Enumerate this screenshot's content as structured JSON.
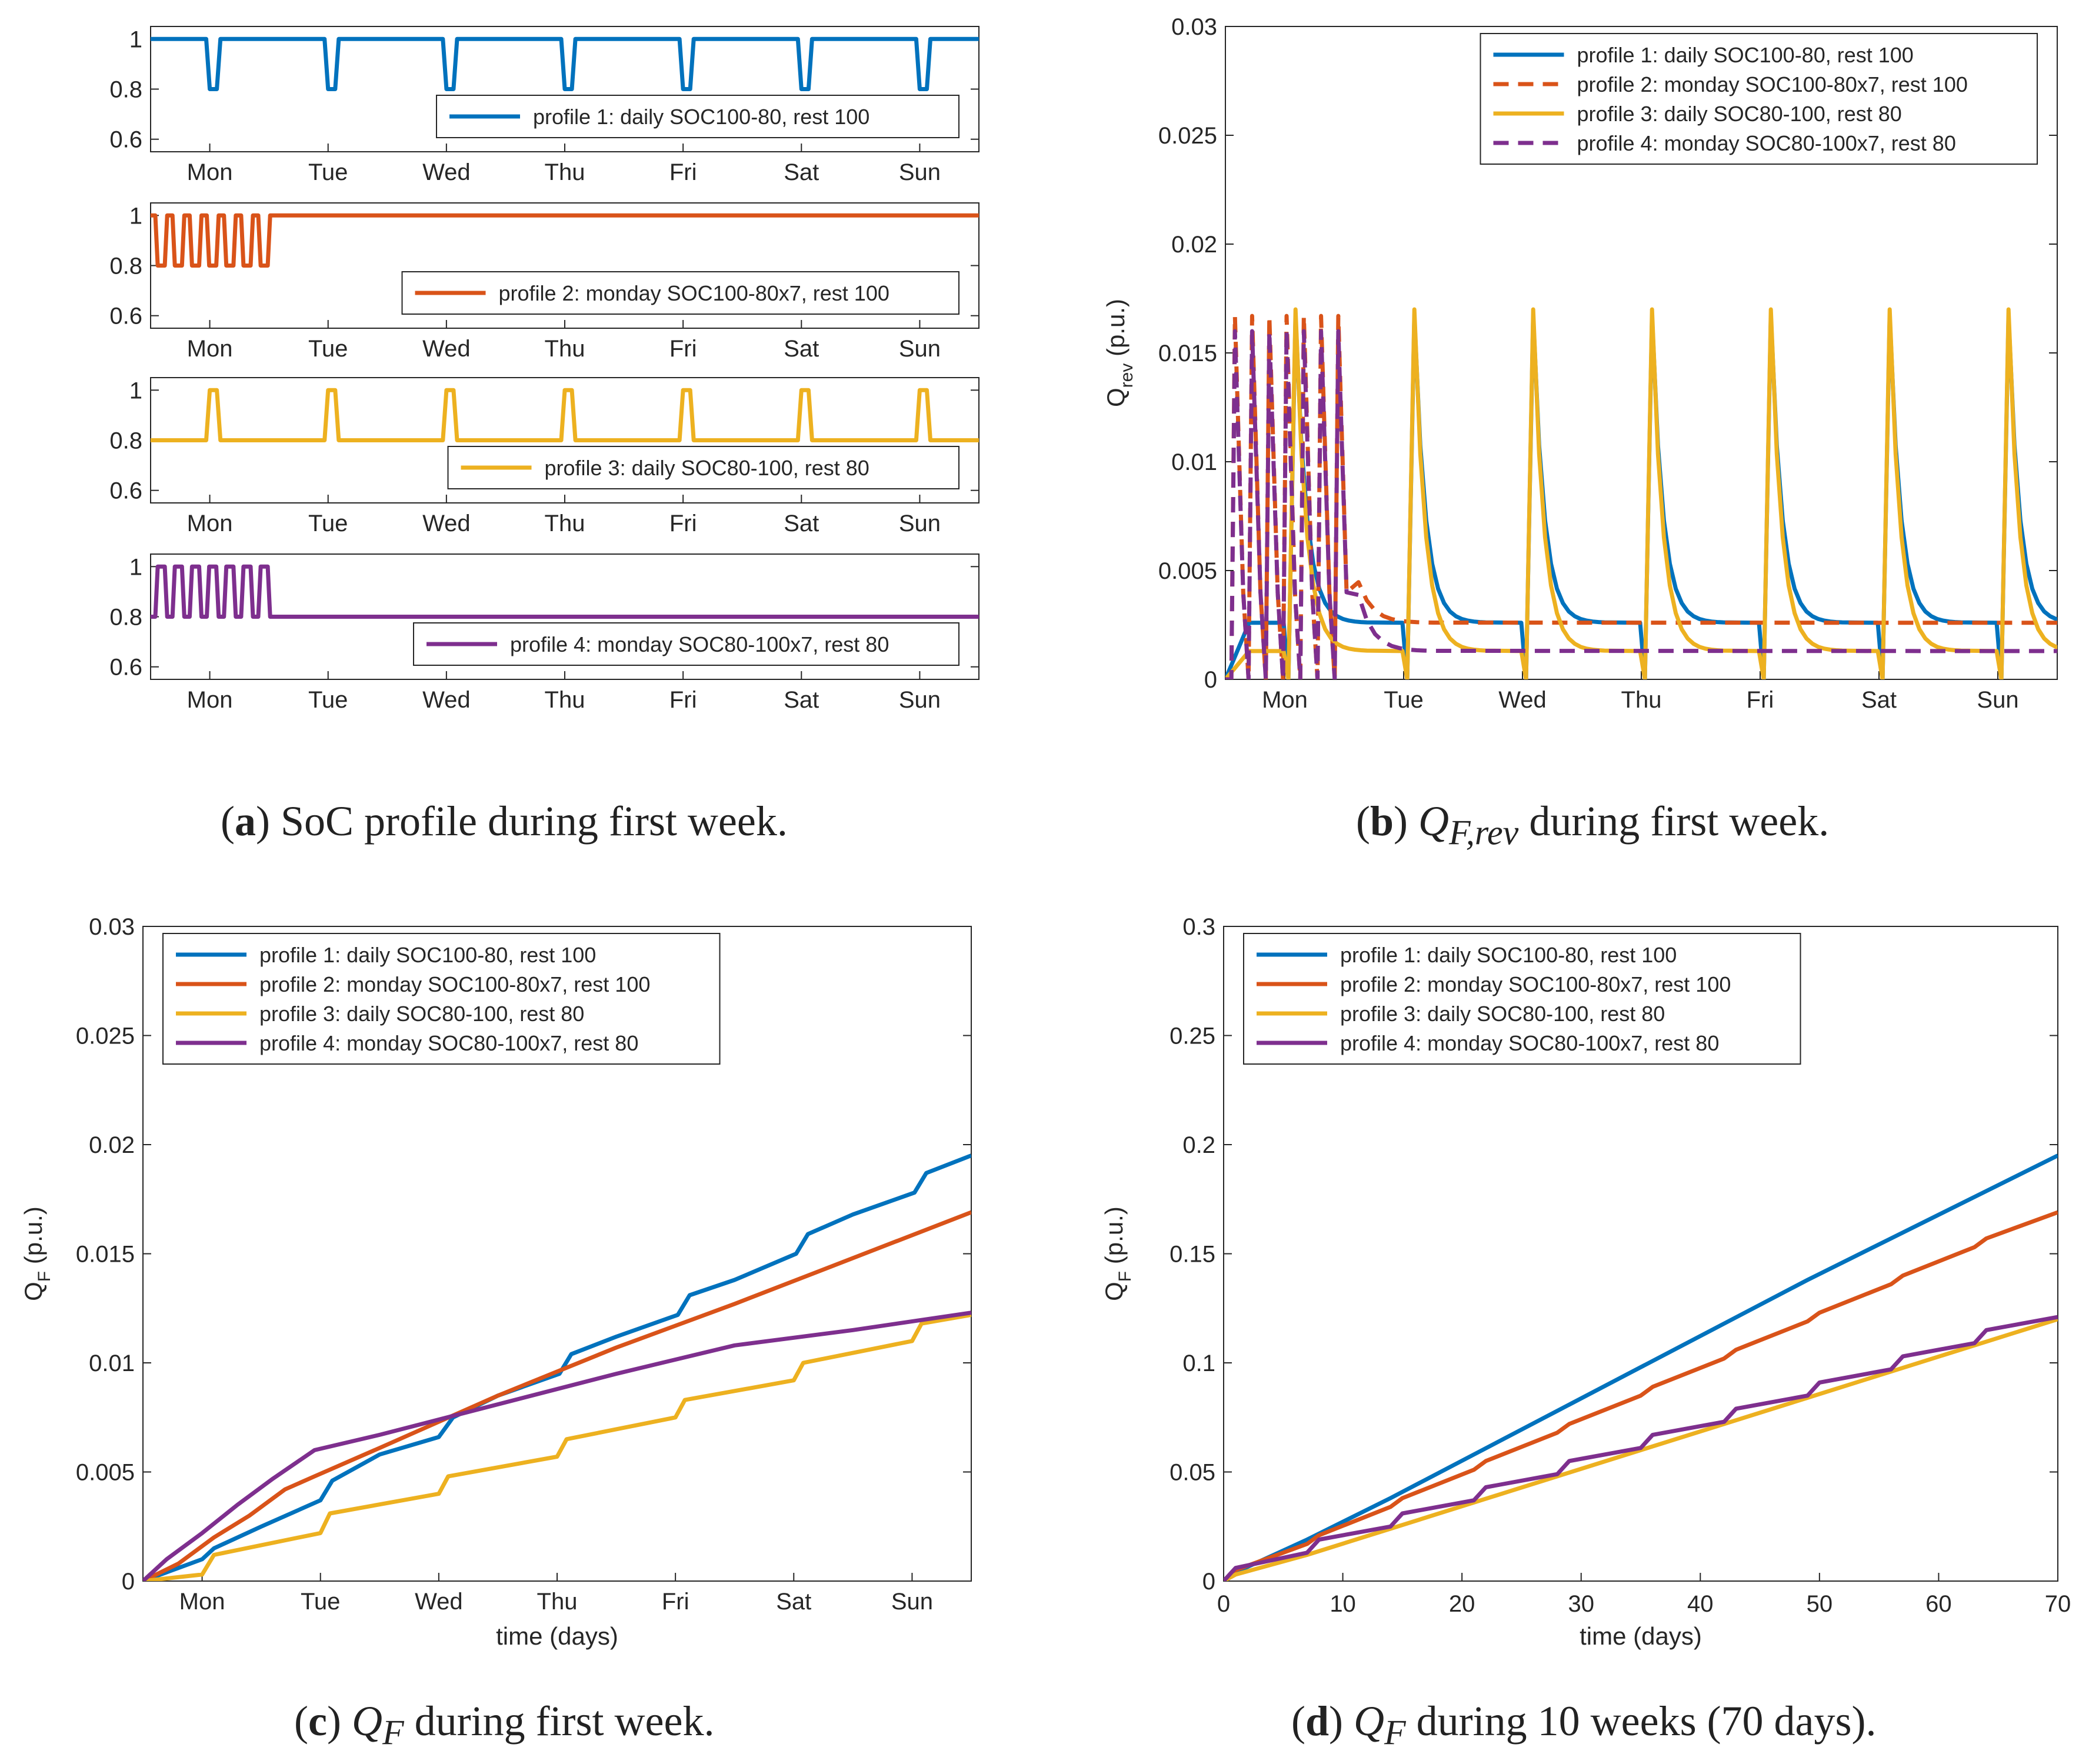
{
  "colors": {
    "p1": "#0072BD",
    "p2": "#D95319",
    "p3": "#EDB120",
    "p4": "#7E2F8E",
    "axis": "#262626"
  },
  "weekdays": [
    "Mon",
    "Tue",
    "Wed",
    "Thu",
    "Fri",
    "Sat",
    "Sun"
  ],
  "captions": {
    "a": {
      "tag": "a",
      "text": "SoC profile during first week."
    },
    "b": {
      "tag": "b",
      "sym": "Q",
      "sub": "F,rev",
      "text": "during first week."
    },
    "c": {
      "tag": "c",
      "sym": "Q",
      "sub": "F",
      "text": "during first week."
    },
    "d": {
      "tag": "d",
      "sym": "Q",
      "sub": "F",
      "text": "during 10 weeks (70 days)."
    }
  },
  "chart_data": [
    {
      "id": "a1",
      "type": "line",
      "ylim": [
        0.55,
        1.05
      ],
      "yticks": [
        "1",
        "0.8",
        "0.6"
      ],
      "ytick_values": [
        1,
        0.8,
        0.6
      ],
      "xlim": [
        0,
        7
      ],
      "series": [
        {
          "name": "profile 1: daily SOC100-80, rest 100",
          "color": "p1",
          "style": "solid",
          "pattern": "daily_dip"
        }
      ],
      "legend": "bottom-right"
    },
    {
      "id": "a2",
      "type": "line",
      "ylim": [
        0.55,
        1.05
      ],
      "yticks": [
        "1",
        "0.8",
        "0.6"
      ],
      "ytick_values": [
        1,
        0.8,
        0.6
      ],
      "xlim": [
        0,
        7
      ],
      "series": [
        {
          "name": "profile 2: monday SOC100-80x7, rest 100",
          "color": "p2",
          "style": "solid",
          "pattern": "monday_x7_dip"
        }
      ],
      "legend": "bottom-right"
    },
    {
      "id": "a3",
      "type": "line",
      "ylim": [
        0.55,
        1.05
      ],
      "yticks": [
        "1",
        "0.8",
        "0.6"
      ],
      "ytick_values": [
        1,
        0.8,
        0.6
      ],
      "xlim": [
        0,
        7
      ],
      "series": [
        {
          "name": "profile 3: daily SOC80-100, rest 80",
          "color": "p3",
          "style": "solid",
          "pattern": "daily_peak"
        }
      ],
      "legend": "bottom-right"
    },
    {
      "id": "a4",
      "type": "line",
      "ylim": [
        0.55,
        1.05
      ],
      "yticks": [
        "1",
        "0.8",
        "0.6"
      ],
      "ytick_values": [
        1,
        0.8,
        0.6
      ],
      "xlim": [
        0,
        7
      ],
      "series": [
        {
          "name": "profile 4: monday SOC80-100x7, rest 80",
          "color": "p4",
          "style": "solid",
          "pattern": "monday_x7_peak"
        }
      ],
      "legend": "bottom-right"
    },
    {
      "id": "b",
      "type": "line",
      "ylabel": "Q_rev (p.u.)",
      "ylim": [
        0,
        0.03
      ],
      "xlim": [
        0,
        7
      ],
      "yticks": [
        "0",
        "0.005",
        "0.01",
        "0.015",
        "0.02",
        "0.025",
        "0.03"
      ],
      "ytick_values": [
        0,
        0.005,
        0.01,
        0.015,
        0.02,
        0.025,
        0.03
      ],
      "series": [
        {
          "name": "profile 1: daily SOC100-80, rest 100",
          "color": "p1",
          "style": "solid",
          "baseline": 0.0026,
          "peak": 0.0167
        },
        {
          "name": "profile 2: monday SOC100-80x7, rest 100",
          "color": "p2",
          "style": "dashed",
          "baseline": 0.0026,
          "peak": 0.0167
        },
        {
          "name": "profile 3: daily SOC80-100, rest 80",
          "color": "p3",
          "style": "solid",
          "baseline": 0.0013,
          "peak": 0.017
        },
        {
          "name": "profile 4: monday SOC80-100x7, rest 80",
          "color": "p4",
          "style": "dashed",
          "baseline": 0.0013,
          "peak": 0.016
        }
      ],
      "legend": "top-right"
    },
    {
      "id": "c",
      "type": "line",
      "xlabel": "time (days)",
      "ylabel": "Q_F (p.u.)",
      "ylim": [
        0,
        0.03
      ],
      "xlim": [
        0,
        7
      ],
      "yticks": [
        "0",
        "0.005",
        "0.01",
        "0.015",
        "0.02",
        "0.025",
        "0.03"
      ],
      "ytick_values": [
        0,
        0.005,
        0.01,
        0.015,
        0.02,
        0.025,
        0.03
      ],
      "series": [
        {
          "name": "profile 1: daily SOC100-80, rest 100",
          "color": "p1",
          "points": [
            [
              0,
              0
            ],
            [
              0.25,
              0.0005
            ],
            [
              0.5,
              0.001
            ],
            [
              0.6,
              0.0015
            ],
            [
              1,
              0.0025
            ],
            [
              1.5,
              0.0037
            ],
            [
              1.6,
              0.0046
            ],
            [
              2,
              0.0058
            ],
            [
              2.5,
              0.0066
            ],
            [
              2.62,
              0.0075
            ],
            [
              3,
              0.0085
            ],
            [
              3.52,
              0.0095
            ],
            [
              3.62,
              0.0104
            ],
            [
              4,
              0.0112
            ],
            [
              4.52,
              0.0122
            ],
            [
              4.62,
              0.0131
            ],
            [
              5,
              0.0138
            ],
            [
              5.52,
              0.015
            ],
            [
              5.62,
              0.0159
            ],
            [
              6,
              0.0168
            ],
            [
              6.52,
              0.0178
            ],
            [
              6.62,
              0.0187
            ],
            [
              7,
              0.0195
            ]
          ]
        },
        {
          "name": "profile 2: monday SOC100-80x7, rest 100",
          "color": "p2",
          "points": [
            [
              0,
              0
            ],
            [
              0.3,
              0.0008
            ],
            [
              0.6,
              0.002
            ],
            [
              0.9,
              0.003
            ],
            [
              1.2,
              0.0042
            ],
            [
              1.45,
              0.0048
            ],
            [
              2,
              0.0061
            ],
            [
              3,
              0.0085
            ],
            [
              4,
              0.0107
            ],
            [
              5,
              0.0127
            ],
            [
              6,
              0.0148
            ],
            [
              7,
              0.0169
            ]
          ]
        },
        {
          "name": "profile 3: daily SOC80-100, rest 80",
          "color": "p3",
          "points": [
            [
              0,
              0
            ],
            [
              0.5,
              0.0003
            ],
            [
              0.6,
              0.0012
            ],
            [
              1.5,
              0.0022
            ],
            [
              1.58,
              0.0031
            ],
            [
              2.5,
              0.004
            ],
            [
              2.58,
              0.0048
            ],
            [
              3.5,
              0.0057
            ],
            [
              3.58,
              0.0065
            ],
            [
              4.5,
              0.0075
            ],
            [
              4.58,
              0.0083
            ],
            [
              5.5,
              0.0092
            ],
            [
              5.58,
              0.01
            ],
            [
              6.5,
              0.011
            ],
            [
              6.58,
              0.0118
            ],
            [
              7,
              0.0122
            ]
          ]
        },
        {
          "name": "profile 4: monday SOC80-100x7, rest 80",
          "color": "p4",
          "points": [
            [
              0,
              0
            ],
            [
              0.2,
              0.001
            ],
            [
              0.5,
              0.0022
            ],
            [
              0.8,
              0.0035
            ],
            [
              1.1,
              0.0047
            ],
            [
              1.45,
              0.006
            ],
            [
              2,
              0.0067
            ],
            [
              3,
              0.0081
            ],
            [
              4,
              0.0095
            ],
            [
              5,
              0.0108
            ],
            [
              6,
              0.0115
            ],
            [
              7,
              0.0123
            ]
          ]
        }
      ],
      "legend": "top-left"
    },
    {
      "id": "d",
      "type": "line",
      "xlabel": "time (days)",
      "ylabel": "Q_F (p.u.)",
      "ylim": [
        0,
        0.3
      ],
      "xlim": [
        0,
        70
      ],
      "yticks": [
        "0",
        "0.05",
        "0.1",
        "0.15",
        "0.2",
        "0.25",
        "0.3"
      ],
      "ytick_values": [
        0,
        0.05,
        0.1,
        0.15,
        0.2,
        0.25,
        0.3
      ],
      "xticks": [
        "0",
        "10",
        "20",
        "30",
        "40",
        "50",
        "60",
        "70"
      ],
      "xtick_values": [
        0,
        10,
        20,
        30,
        40,
        50,
        60,
        70
      ],
      "series": [
        {
          "name": "profile 1: daily SOC100-80, rest 100",
          "color": "p1",
          "points": [
            [
              0,
              0
            ],
            [
              1,
              0.004
            ],
            [
              7,
              0.019
            ],
            [
              14,
              0.038
            ],
            [
              21,
              0.058
            ],
            [
              28,
              0.078
            ],
            [
              35,
              0.098
            ],
            [
              42,
              0.118
            ],
            [
              49,
              0.138
            ],
            [
              56,
              0.157
            ],
            [
              63,
              0.176
            ],
            [
              70,
              0.195
            ]
          ]
        },
        {
          "name": "profile 2: monday SOC100-80x7, rest 100",
          "color": "p2",
          "points": [
            [
              0,
              0
            ],
            [
              1,
              0.005
            ],
            [
              7,
              0.017
            ],
            [
              8,
              0.021
            ],
            [
              14,
              0.034
            ],
            [
              15,
              0.038
            ],
            [
              21,
              0.051
            ],
            [
              22,
              0.055
            ],
            [
              28,
              0.068
            ],
            [
              29,
              0.072
            ],
            [
              35,
              0.085
            ],
            [
              36,
              0.089
            ],
            [
              42,
              0.102
            ],
            [
              43,
              0.106
            ],
            [
              49,
              0.119
            ],
            [
              50,
              0.123
            ],
            [
              56,
              0.136
            ],
            [
              57,
              0.14
            ],
            [
              63,
              0.153
            ],
            [
              64,
              0.157
            ],
            [
              70,
              0.169
            ]
          ]
        },
        {
          "name": "profile 3: daily SOC80-100, rest 80",
          "color": "p3",
          "points": [
            [
              0,
              0
            ],
            [
              1,
              0.003
            ],
            [
              7,
              0.012
            ],
            [
              14,
              0.024
            ],
            [
              21,
              0.036
            ],
            [
              28,
              0.048
            ],
            [
              35,
              0.06
            ],
            [
              42,
              0.072
            ],
            [
              49,
              0.084
            ],
            [
              56,
              0.096
            ],
            [
              63,
              0.108
            ],
            [
              70,
              0.12
            ]
          ]
        },
        {
          "name": "profile 4: monday SOC80-100x7, rest 80",
          "color": "p4",
          "points": [
            [
              0,
              0
            ],
            [
              1,
              0.006
            ],
            [
              7,
              0.013
            ],
            [
              8,
              0.019
            ],
            [
              14,
              0.025
            ],
            [
              15,
              0.031
            ],
            [
              21,
              0.037
            ],
            [
              22,
              0.043
            ],
            [
              28,
              0.049
            ],
            [
              29,
              0.055
            ],
            [
              35,
              0.061
            ],
            [
              36,
              0.067
            ],
            [
              42,
              0.073
            ],
            [
              43,
              0.079
            ],
            [
              49,
              0.085
            ],
            [
              50,
              0.091
            ],
            [
              56,
              0.097
            ],
            [
              57,
              0.103
            ],
            [
              63,
              0.109
            ],
            [
              64,
              0.115
            ],
            [
              70,
              0.121
            ]
          ]
        }
      ],
      "legend": "top-left"
    }
  ]
}
